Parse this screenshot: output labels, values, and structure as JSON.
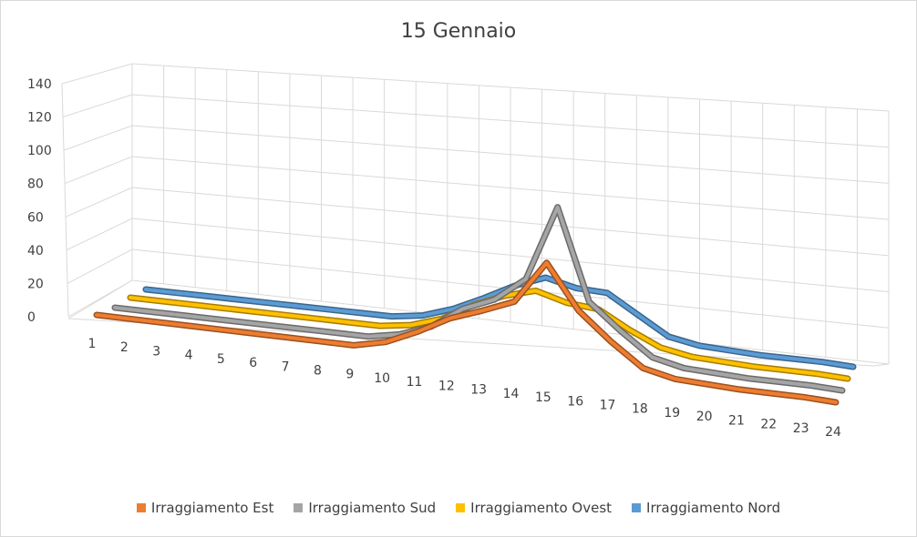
{
  "chart_data": {
    "type": "line",
    "title": "15 Gennaio",
    "xlabel": "",
    "ylabel": "",
    "categories": [
      "1",
      "2",
      "3",
      "4",
      "5",
      "6",
      "7",
      "8",
      "9",
      "10",
      "11",
      "12",
      "13",
      "14",
      "15",
      "16",
      "17",
      "18",
      "19",
      "20",
      "21",
      "22",
      "23",
      "24"
    ],
    "y_ticks": [
      "0",
      "20",
      "40",
      "60",
      "80",
      "100",
      "120",
      "140"
    ],
    "ylim": [
      0,
      140
    ],
    "grid": true,
    "legend_position": "bottom",
    "view": "3d-line",
    "series": [
      {
        "name": "Irraggiamento Est",
        "color": "#ED7D31",
        "values": [
          0,
          0,
          0,
          0,
          0,
          0,
          0,
          0,
          0,
          5,
          15,
          27,
          35,
          44,
          74,
          43,
          24,
          8,
          3,
          2,
          1,
          1,
          1,
          0
        ]
      },
      {
        "name": "Irraggiamento Sud",
        "color": "#A5A5A5",
        "values": [
          0,
          0,
          0,
          0,
          0,
          0,
          0,
          0,
          0,
          4,
          12,
          27,
          36,
          53,
          106,
          42,
          24,
          8,
          3,
          2,
          1,
          1,
          1,
          0
        ]
      },
      {
        "name": "Irraggiamento Ovest",
        "color": "#FFC000",
        "values": [
          0,
          0,
          0,
          0,
          0,
          0,
          0,
          0,
          0,
          3,
          10,
          22,
          31,
          37,
          31,
          29,
          17,
          7,
          3,
          2,
          1,
          1,
          1,
          0
        ]
      },
      {
        "name": "Irraggiamento Nord",
        "color": "#5B9BD5",
        "values": [
          0,
          0,
          0,
          0,
          0,
          0,
          0,
          0,
          0,
          3,
          10,
          20,
          31,
          39,
          34,
          33,
          20,
          7,
          3,
          2,
          1,
          1,
          1,
          0
        ]
      }
    ]
  }
}
